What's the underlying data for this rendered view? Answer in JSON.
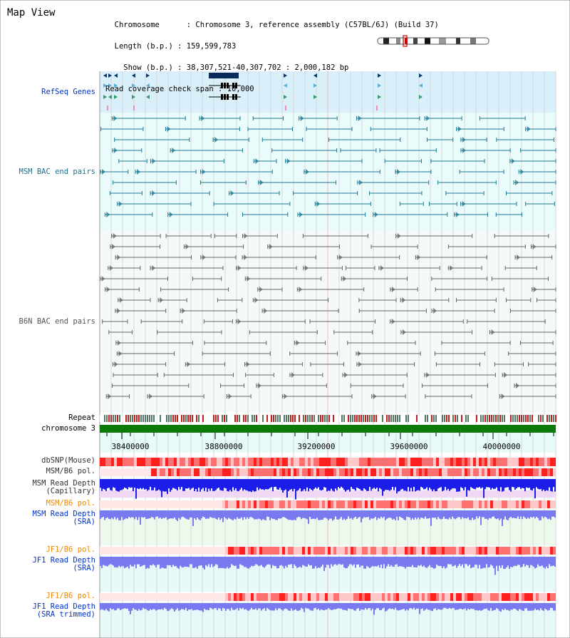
{
  "header": {
    "title": "Map View",
    "info_lines": [
      "  Chromosome      : Chromosome 3, reference assembly (C57BL/6J) (Build 37)",
      "  Length (b.p.) : 159,599,783",
      "    Show (b.p.) : 38,307,521-40,307,702 : 2,000,182 bp",
      "Read coverage check span : 10,000"
    ]
  },
  "tracks": {
    "refseq": "RefSeq Genes",
    "msm_bac": "MSM BAC end pairs",
    "b6n_bac": "B6N BAC end pairs",
    "repeat": "Repeat",
    "chromosome": "chromosome 3",
    "dbsnp": "dbSNP(Mouse)",
    "msm_b6_pol": "MSM/B6 pol.",
    "msm_read_cap": "MSM Read Depth\n(Capillary)",
    "msm_b6_pol2": "MSM/B6 pol.",
    "msm_read_sra": "MSM Read Depth\n(SRA)",
    "jf1_b6_pol": "JF1/B6 pol.",
    "jf1_read_sra": "JF1 Read Depth\n(SRA)",
    "jf1_b6_pol2": "JF1/B6 pol.",
    "jf1_read_trim": "JF1 Read Depth\n(SRA trimmed)"
  },
  "axis": {
    "ticks": [
      "38400000",
      "38800000",
      "39200000",
      "39600000",
      "40000000"
    ]
  },
  "colors": {
    "refseq_bg": "#d9f0fa",
    "bac_bg": "#e9fbfb",
    "msm_bac_color": "#1f7a94",
    "b6n_bac_color": "#666666",
    "chromosome_green": "#0b7a0b",
    "read_depth_blue": "#1d1dea",
    "sra_blue": "#7a7af0",
    "msm_label": "#0033cc",
    "pol_label": "#ee8800"
  }
}
